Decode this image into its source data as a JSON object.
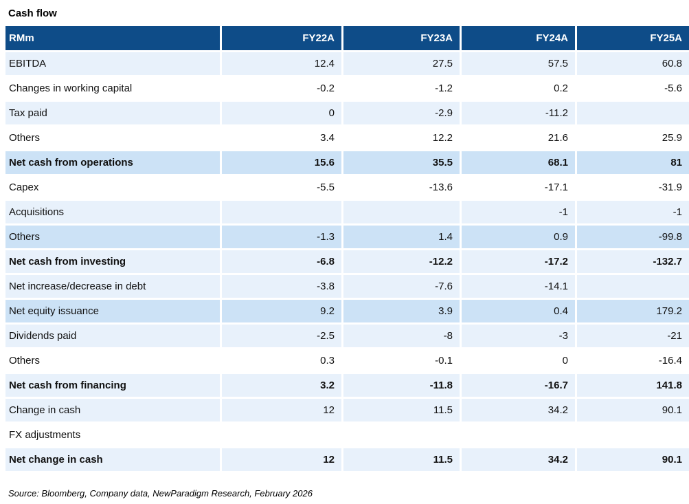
{
  "title": "Cash flow",
  "source": "Source: Bloomberg, Company data, NewParadigm Research, February 2026",
  "theme": {
    "header_bg": "#0E4C88",
    "header_text": "#FFFFFF",
    "row_light": "#E8F1FB",
    "row_medium": "#CCE2F6",
    "row_white": "#FFFFFF",
    "body_text": "#111111"
  },
  "table": {
    "unit_label": "RMm",
    "columns": [
      "RMm",
      "FY22A",
      "FY23A",
      "FY24A",
      "FY25A"
    ],
    "rows": [
      {
        "label": "EBITDA",
        "values": [
          "12.4",
          "27.5",
          "57.5",
          "60.8"
        ],
        "bold": false,
        "shade": "light"
      },
      {
        "label": "Changes in working capital",
        "values": [
          "-0.2",
          "-1.2",
          "0.2",
          "-5.6"
        ],
        "bold": false,
        "shade": "white"
      },
      {
        "label": "Tax paid",
        "values": [
          "0",
          "-2.9",
          "-11.2",
          ""
        ],
        "bold": false,
        "shade": "light"
      },
      {
        "label": "Others",
        "values": [
          "3.4",
          "12.2",
          "21.6",
          "25.9"
        ],
        "bold": false,
        "shade": "white"
      },
      {
        "label": "Net cash from operations",
        "values": [
          "15.6",
          "35.5",
          "68.1",
          "81"
        ],
        "bold": true,
        "shade": "medium"
      },
      {
        "label": "Capex",
        "values": [
          "-5.5",
          "-13.6",
          "-17.1",
          "-31.9"
        ],
        "bold": false,
        "shade": "white"
      },
      {
        "label": "Acquisitions",
        "values": [
          "",
          "",
          "-1",
          "-1"
        ],
        "bold": false,
        "shade": "light"
      },
      {
        "label": "Others",
        "values": [
          "-1.3",
          "1.4",
          "0.9",
          "-99.8"
        ],
        "bold": false,
        "shade": "medium"
      },
      {
        "label": "Net cash from investing",
        "values": [
          "-6.8",
          "-12.2",
          "-17.2",
          "-132.7"
        ],
        "bold": true,
        "shade": "light"
      },
      {
        "label": "Net increase/decrease in debt",
        "values": [
          "-3.8",
          "-7.6",
          "-14.1",
          ""
        ],
        "bold": false,
        "shade": "light"
      },
      {
        "label": "Net equity issuance",
        "values": [
          "9.2",
          "3.9",
          "0.4",
          "179.2"
        ],
        "bold": false,
        "shade": "medium"
      },
      {
        "label": "Dividends paid",
        "values": [
          "-2.5",
          "-8",
          "-3",
          "-21"
        ],
        "bold": false,
        "shade": "light"
      },
      {
        "label": "Others",
        "values": [
          "0.3",
          "-0.1",
          "0",
          "-16.4"
        ],
        "bold": false,
        "shade": "white"
      },
      {
        "label": "Net cash from financing",
        "values": [
          "3.2",
          "-11.8",
          "-16.7",
          "141.8"
        ],
        "bold": true,
        "shade": "light"
      },
      {
        "label": "Change in cash",
        "values": [
          "12",
          "11.5",
          "34.2",
          "90.1"
        ],
        "bold": false,
        "shade": "light"
      },
      {
        "label": "FX adjustments",
        "values": [
          "",
          "",
          "",
          ""
        ],
        "bold": false,
        "shade": "white"
      },
      {
        "label": "Net change in cash",
        "values": [
          "12",
          "11.5",
          "34.2",
          "90.1"
        ],
        "bold": true,
        "shade": "light"
      }
    ]
  }
}
